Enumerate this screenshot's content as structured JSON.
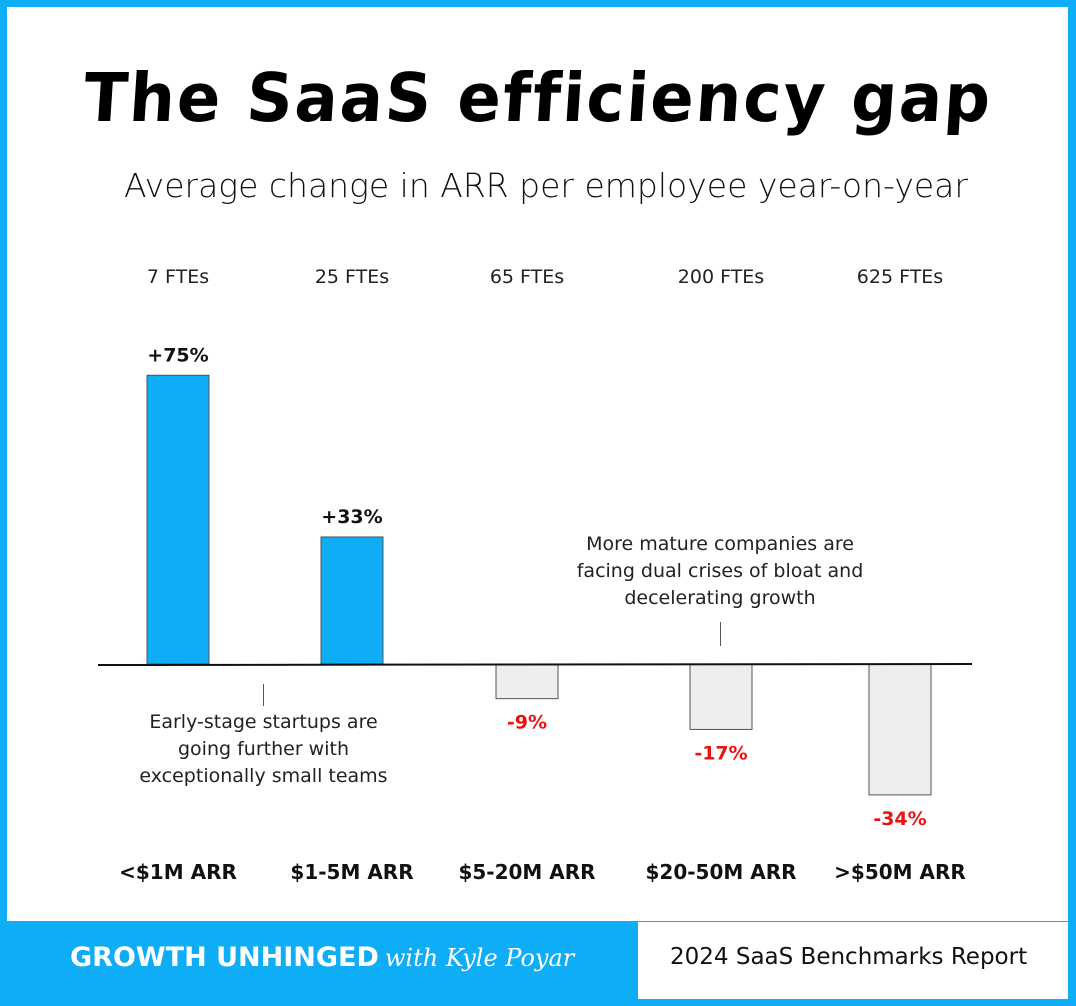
{
  "title": "The SaaS efficiency gap",
  "subtitle": "Average change in ARR per employee year-on-year",
  "chart_data": {
    "type": "bar",
    "categories": [
      "<$1M ARR",
      "$1-5M ARR",
      "$5-20M ARR",
      "$20-50M ARR",
      ">$50M ARR"
    ],
    "team_sizes": [
      "7 FTEs",
      "25 FTEs",
      "65 FTEs",
      "200 FTEs",
      "625 FTEs"
    ],
    "values": [
      75,
      33,
      -9,
      -17,
      -34
    ],
    "data_labels": [
      "+75%",
      "+33%",
      "-9%",
      "-17%",
      "-34%"
    ],
    "unit": "%",
    "grid": false,
    "colors": {
      "positive": "#0eadf5",
      "negative": "#eeeeee",
      "negative_label": "#ee1111",
      "positive_label": "#111111"
    },
    "annotations": [
      "Early-stage startups are going further with exceptionally small teams",
      "More mature companies are facing dual crises of bloat and decelerating growth"
    ]
  },
  "annotation_lines": {
    "early": [
      "Early-stage startups are",
      "going further with",
      "exceptionally small teams"
    ],
    "mature": [
      "More mature companies are",
      "facing dual crises of bloat and",
      "decelerating growth"
    ]
  },
  "footer": {
    "brand": "GROWTH UNHINGED",
    "byline": "with Kyle Poyar",
    "report": "2024 SaaS Benchmarks Report"
  },
  "colors": {
    "brand_blue": "#0eadf5"
  }
}
